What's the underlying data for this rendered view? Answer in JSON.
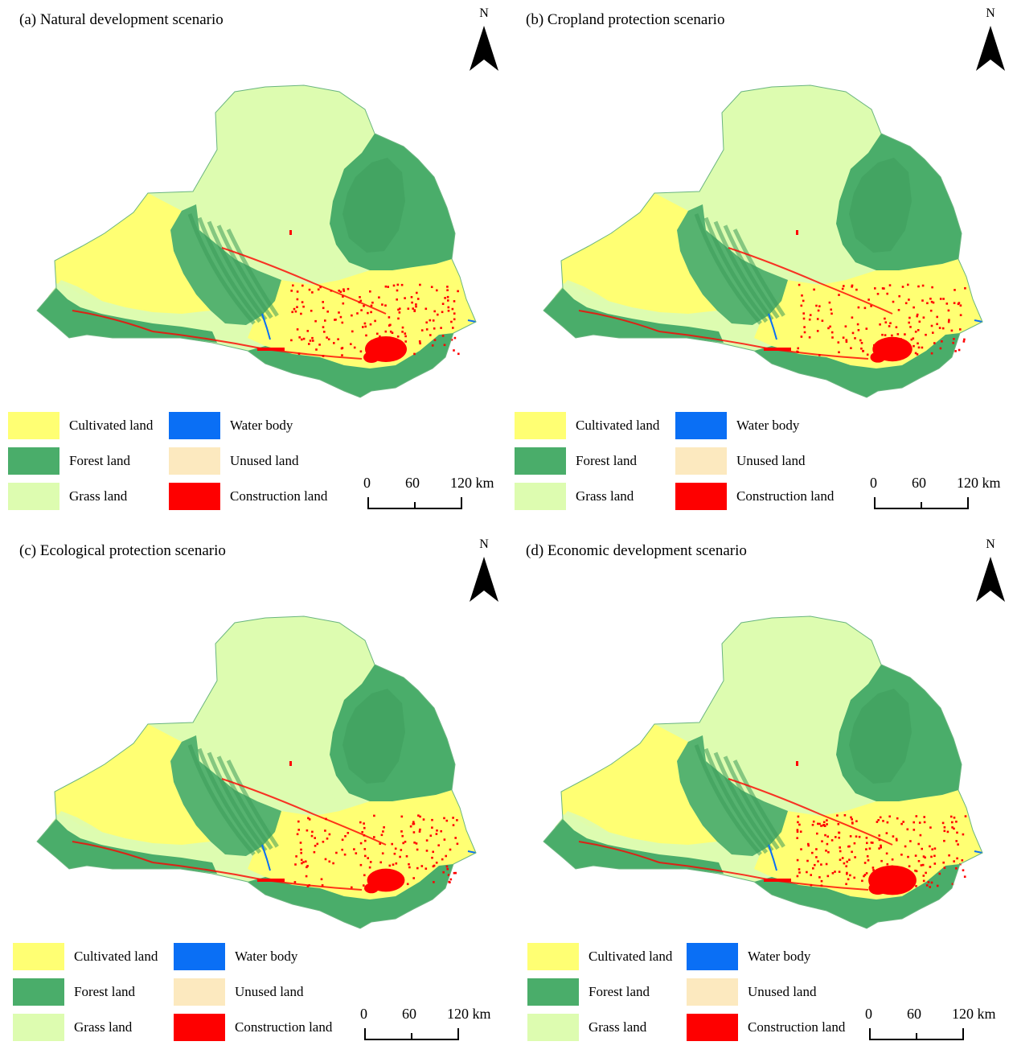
{
  "colors": {
    "cultivated": "#ffff73",
    "forest": "#4aad6a",
    "grass": "#ddfcb0",
    "water": "#0a6ff5",
    "unused": "#fce9bf",
    "construction": "#fe0000"
  },
  "panels": [
    {
      "title": "(a) Natural development scenario",
      "north": "N",
      "legend": [
        {
          "label": "Cultivated land",
          "color": "#ffff73"
        },
        {
          "label": "Water body",
          "color": "#0a6ff5"
        },
        {
          "label": "Forest land",
          "color": "#4aad6a"
        },
        {
          "label": "Unused land",
          "color": "#fce9bf"
        },
        {
          "label": "Grass land",
          "color": "#ddfcb0"
        },
        {
          "label": "Construction land",
          "color": "#fe0000"
        }
      ],
      "scale": {
        "ticks": [
          "0",
          "60",
          "120 km"
        ]
      }
    },
    {
      "title": "(b) Cropland protection scenario",
      "north": "N",
      "legend": [
        {
          "label": "Cultivated land",
          "color": "#ffff73"
        },
        {
          "label": "Water body",
          "color": "#0a6ff5"
        },
        {
          "label": "Forest land",
          "color": "#4aad6a"
        },
        {
          "label": "Unused land",
          "color": "#fce9bf"
        },
        {
          "label": "Grass land",
          "color": "#ddfcb0"
        },
        {
          "label": "Construction land",
          "color": "#fe0000"
        }
      ],
      "scale": {
        "ticks": [
          "0",
          "60",
          "120 km"
        ]
      }
    },
    {
      "title": "(c) Ecological protection scenario",
      "north": "N",
      "legend": [
        {
          "label": "Cultivated land",
          "color": "#ffff73"
        },
        {
          "label": "Water body",
          "color": "#0a6ff5"
        },
        {
          "label": "Forest land",
          "color": "#4aad6a"
        },
        {
          "label": "Unused land",
          "color": "#fce9bf"
        },
        {
          "label": "Grass land",
          "color": "#ddfcb0"
        },
        {
          "label": "Construction land",
          "color": "#fe0000"
        }
      ],
      "scale": {
        "ticks": [
          "0",
          "60",
          "120 km"
        ]
      }
    },
    {
      "title": "(d) Economic development scenario",
      "north": "N",
      "legend": [
        {
          "label": "Cultivated land",
          "color": "#ffff73"
        },
        {
          "label": "Water body",
          "color": "#0a6ff5"
        },
        {
          "label": "Forest land",
          "color": "#4aad6a"
        },
        {
          "label": "Unused land",
          "color": "#fce9bf"
        },
        {
          "label": "Grass land",
          "color": "#ddfcb0"
        },
        {
          "label": "Construction land",
          "color": "#fe0000"
        }
      ],
      "scale": {
        "ticks": [
          "0",
          "60",
          "120 km"
        ]
      }
    }
  ]
}
